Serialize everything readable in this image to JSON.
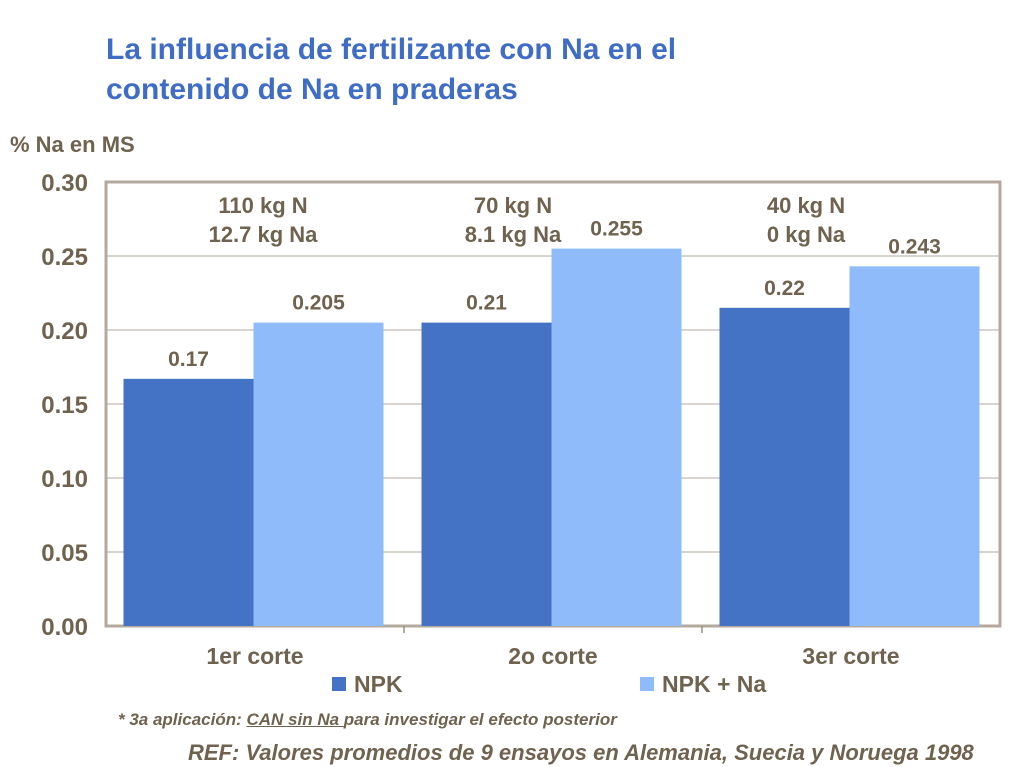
{
  "title_line1": "La influencia de fertilizante con Na en el",
  "title_line2": "contenido de Na en praderas",
  "chart_data": {
    "type": "bar",
    "title": "La influencia de fertilizante con Na en el contenido de Na en praderas",
    "ylabel": "% Na en MS",
    "xlabel": "",
    "ylim": [
      0,
      0.3
    ],
    "yticks": [
      "0.00",
      "0.05",
      "0.10",
      "0.15",
      "0.20",
      "0.25",
      "0.30"
    ],
    "grid": true,
    "categories": [
      "1er corte",
      "2o corte",
      "3er corte"
    ],
    "series": [
      {
        "name": "NPK",
        "color": "#4472c4",
        "values": [
          0.167,
          0.205,
          0.215
        ],
        "labels": [
          "0.17",
          "0.21",
          "0.22"
        ]
      },
      {
        "name": "NPK + Na",
        "color": "#8fbbfa",
        "values": [
          0.205,
          0.255,
          0.243
        ],
        "labels": [
          "0.205",
          "0.255",
          "0.243"
        ]
      }
    ],
    "annotations": [
      [
        "110 kg N",
        "12.7 kg Na"
      ],
      [
        "70 kg N",
        "8.1 kg Na"
      ],
      [
        "40 kg N",
        "0 kg Na"
      ]
    ],
    "legend_position": "bottom"
  },
  "note": {
    "prefix": "* 3a aplicación: ",
    "underlined": "CAN sin Na ",
    "suffix": "para investigar el efecto posterior"
  },
  "ref": "REF: Valores promedios de 9 ensayos en Alemania, Suecia y Noruega 1998"
}
